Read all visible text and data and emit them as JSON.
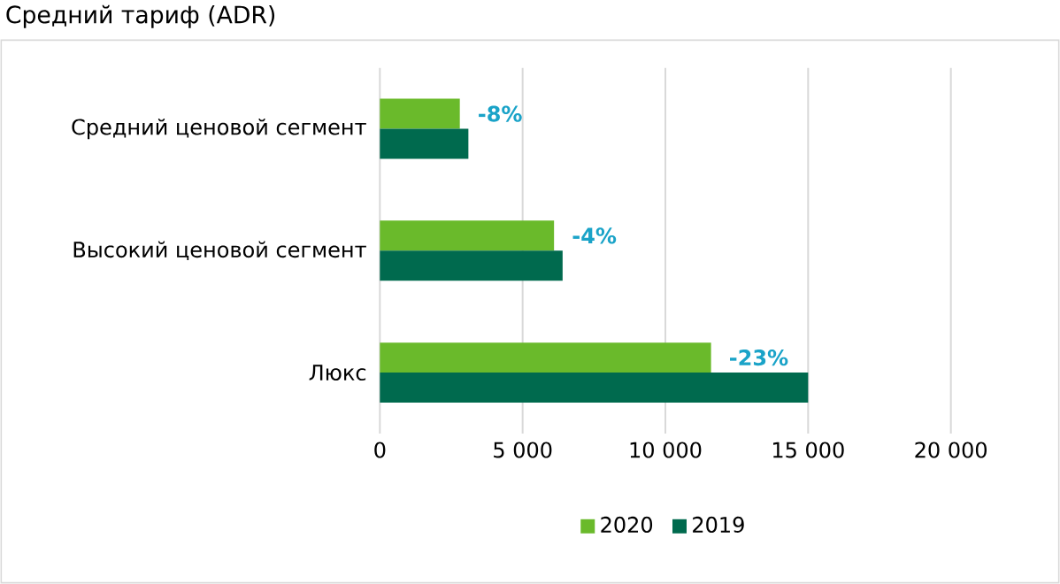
{
  "chart_data": {
    "type": "bar",
    "orientation": "horizontal",
    "title": "Средний тариф (ADR)",
    "categories": [
      "Средний ценовой сегмент",
      "Высокий ценовой сегмент",
      "Люкс"
    ],
    "series": [
      {
        "name": "2020",
        "color": "#6aba2b",
        "values": [
          2800,
          6100,
          11600
        ]
      },
      {
        "name": "2019",
        "color": "#006a4e",
        "values": [
          3100,
          6400,
          15000
        ]
      }
    ],
    "xlim": [
      0,
      20000
    ],
    "xticks": [
      0,
      {
        "value": 5000,
        "label": "5 000"
      },
      {
        "value": 10000,
        "label": "10 000"
      },
      {
        "value": 15000,
        "label": "15 000"
      },
      {
        "value": 20000,
        "label": "20 000"
      }
    ],
    "annotations": [
      {
        "text": "-8%",
        "x": 2800,
        "y": "Средний ценовой сегмент"
      },
      {
        "text": "-4%",
        "x": 6100,
        "y": "Высокий ценовой сегмент"
      },
      {
        "text": "-23%",
        "x": 11600,
        "y": "Люкс"
      }
    ],
    "grid": "x",
    "legend": "bottom"
  }
}
